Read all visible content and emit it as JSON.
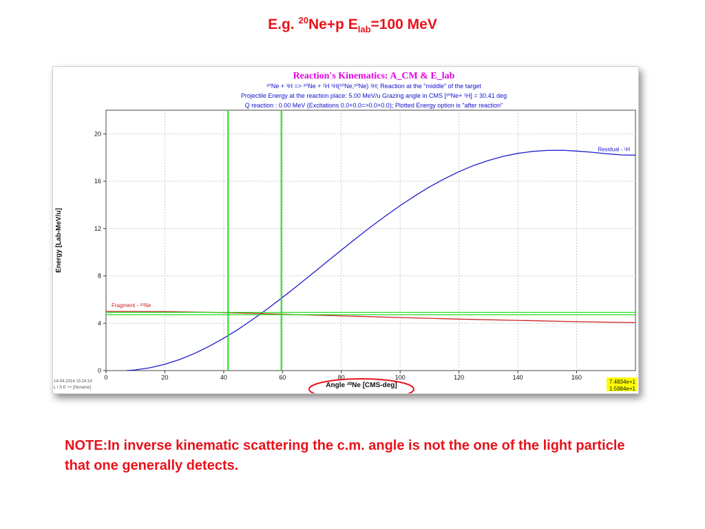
{
  "slide": {
    "title_prefix": "E.g. ",
    "title_sup": "20",
    "title_mid": "Ne+p E",
    "title_sub": "lab",
    "title_suffix": "=100 MeV",
    "note": "NOTE:In inverse kinematic scattering the c.m. angle is not the one of the light particle that one generally detects."
  },
  "panel": {
    "title": "Reaction's Kinematics:  A_CM  &  E_lab",
    "line1": "²⁰Ne + ¹H => ²⁰Ne + ¹H      ¹H(²⁰Ne,²⁰Ne) ¹H;  Reaction at the \"middle\" of the target",
    "line2": "Projectile Energy at the reaction place:  5.00 MeV/u          Grazing angle in CMS [²⁰Ne+ ¹H] = 30.41 deg",
    "line3": "Q reaction : 0.00 MeV  (Excitations 0.0+0.0=>0.0+0.0);   Plotted Energy option is \"after reaction\"",
    "timestamp": "14-04-2014  15:24:14",
    "software": "L I S E ++  [Noname]",
    "readout_1": "7.4834e+1",
    "readout_2": "1.5984e+1",
    "readout_bg": "#ffff00"
  },
  "chart_data": {
    "type": "line",
    "xlabel": "Angle ²⁰Ne [CMS-deg]",
    "ylabel": "Energy [Lab-MeV/u]",
    "xlim": [
      0,
      180
    ],
    "ylim": [
      0,
      22
    ],
    "xticks": [
      0,
      20,
      40,
      60,
      80,
      100,
      120,
      140,
      160
    ],
    "yticks": [
      0,
      4,
      8,
      12,
      16,
      20
    ],
    "grid": true,
    "series": [
      {
        "name": "Residual - ¹H",
        "color": "#1a1acc",
        "x": [
          7,
          10,
          15,
          20,
          25,
          30,
          35,
          40,
          45,
          50,
          55,
          60,
          65,
          70,
          75,
          80,
          85,
          90,
          95,
          100,
          105,
          110,
          115,
          120,
          125,
          130,
          135,
          140,
          145,
          150,
          155,
          160,
          165,
          170,
          175,
          180
        ],
        "y": [
          0,
          0.06,
          0.24,
          0.53,
          0.93,
          1.44,
          2.04,
          2.73,
          3.5,
          4.34,
          5.24,
          6.18,
          7.16,
          8.16,
          9.17,
          10.18,
          11.17,
          12.14,
          13.06,
          13.94,
          14.76,
          15.52,
          16.2,
          16.81,
          17.33,
          17.75,
          18.1,
          18.35,
          18.52,
          18.6,
          18.62,
          18.55,
          18.45,
          18.33,
          18.22,
          18.2
        ]
      },
      {
        "name": "Fragment - ²⁰Ne",
        "color": "#cc2020",
        "x": [
          0,
          20,
          40,
          60,
          80,
          100,
          120,
          140,
          160,
          180
        ],
        "y": [
          5.0,
          4.98,
          4.9,
          4.76,
          4.62,
          4.48,
          4.35,
          4.24,
          4.13,
          4.05
        ]
      }
    ],
    "vlines": [
      {
        "x": 41.5,
        "color": "#22dd22"
      },
      {
        "x": 59.6,
        "color": "#22dd22"
      }
    ],
    "hlines": [
      {
        "y": 4.72,
        "color": "#22dd22"
      },
      {
        "y": 4.92,
        "color": "#22dd22"
      }
    ],
    "highlight": {
      "target": "xlabel",
      "color": "#e8121b"
    }
  }
}
